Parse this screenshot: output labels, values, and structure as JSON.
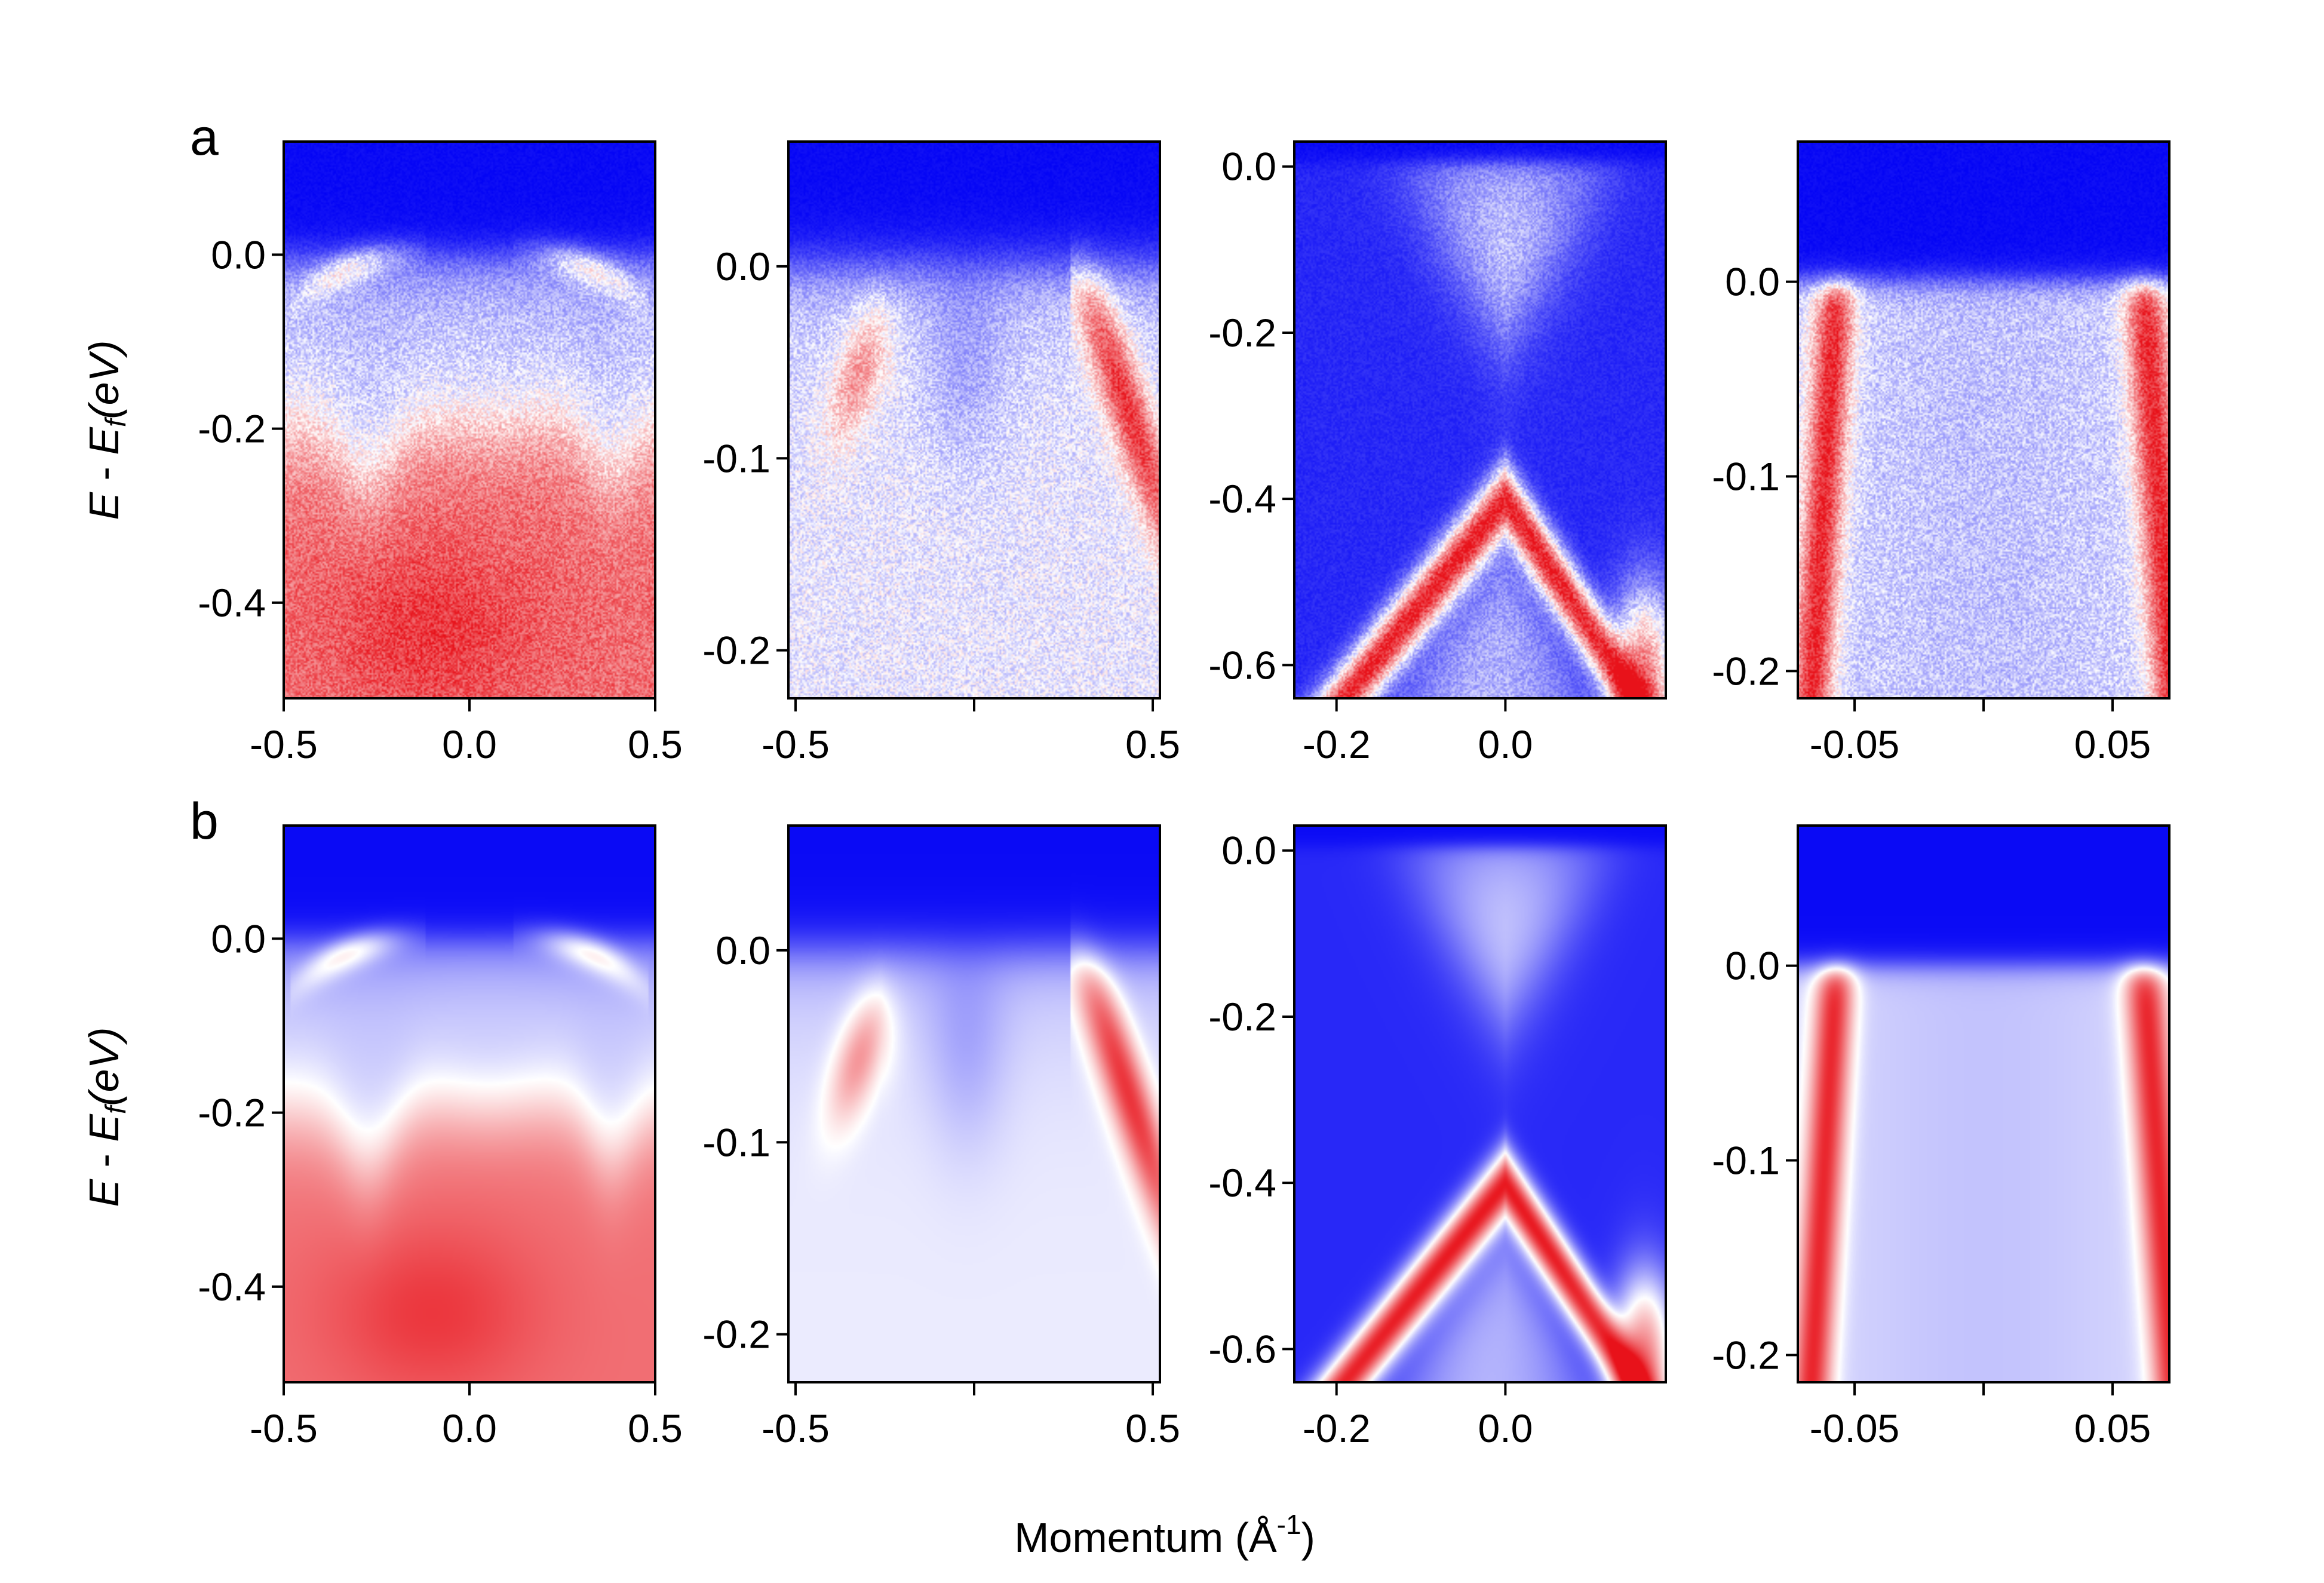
{
  "figure": {
    "xlabel": "Momentum (Å",
    "xlabel_exponent": "-1",
    "xlabel_close": ")",
    "ylabel_E": "E",
    "ylabel_minus": " - ",
    "ylabel_Ef": "E",
    "ylabel_sub": "f",
    "ylabel_unit": "(eV)"
  },
  "colors": {
    "high": "#e8121a",
    "mid": "#ffffff",
    "low": "#0000f5",
    "frame": "#000000"
  },
  "chart_data": [
    {
      "type": "heatmap",
      "row": "a",
      "title": "a",
      "panel": "wide-scan",
      "xlim": [
        -0.5,
        0.5
      ],
      "ylim": [
        -0.51,
        0.13
      ],
      "xticks": [
        -0.5,
        0.0,
        0.5
      ],
      "xtick_labels": [
        "-0.5",
        "0.0",
        "0.5"
      ],
      "yticks": [
        0.0,
        -0.2,
        -0.4
      ],
      "ytick_labels": [
        "0.0",
        "-0.2",
        "-0.4"
      ],
      "noisy": true,
      "source": "measured"
    },
    {
      "type": "heatmap",
      "row": "a",
      "title": "",
      "panel": "two-bands",
      "xlim": [
        -0.52,
        0.52
      ],
      "ylim": [
        -0.225,
        0.065
      ],
      "xticks": [
        -0.5,
        0.0,
        0.5
      ],
      "xtick_labels": [
        "-0.5",
        "",
        "0.5"
      ],
      "yticks": [
        0.0,
        -0.1,
        -0.2
      ],
      "ytick_labels": [
        "0.0",
        "-0.1",
        "-0.2"
      ],
      "noisy": true,
      "source": "measured"
    },
    {
      "type": "heatmap",
      "row": "a",
      "title": "",
      "panel": "dirac-cone",
      "xlim": [
        -0.25,
        0.19
      ],
      "ylim": [
        -0.64,
        0.03
      ],
      "xticks": [
        -0.2,
        0.0
      ],
      "xtick_labels": [
        "-0.2",
        "0.0"
      ],
      "yticks": [
        0.0,
        -0.2,
        -0.4,
        -0.6
      ],
      "ytick_labels": [
        "0.0",
        "-0.2",
        "-0.4",
        "-0.6"
      ],
      "noisy": true,
      "source": "measured"
    },
    {
      "type": "heatmap",
      "row": "a",
      "title": "",
      "panel": "zoom-bands",
      "xlim": [
        -0.072,
        0.072
      ],
      "ylim": [
        -0.214,
        0.072
      ],
      "xticks": [
        -0.05,
        0.0,
        0.05
      ],
      "xtick_labels": [
        "-0.05",
        "",
        "0.05"
      ],
      "yticks": [
        0.0,
        -0.1,
        -0.2
      ],
      "ytick_labels": [
        "0.0",
        "-0.1",
        "-0.2"
      ],
      "noisy": true,
      "source": "measured"
    },
    {
      "type": "heatmap",
      "row": "b",
      "title": "b",
      "panel": "wide-scan",
      "xlim": [
        -0.5,
        0.5
      ],
      "ylim": [
        -0.51,
        0.13
      ],
      "xticks": [
        -0.5,
        0.0,
        0.5
      ],
      "xtick_labels": [
        "-0.5",
        "0.0",
        "0.5"
      ],
      "yticks": [
        0.0,
        -0.2,
        -0.4
      ],
      "ytick_labels": [
        "0.0",
        "-0.2",
        "-0.4"
      ],
      "noisy": false,
      "source": "reconstructed"
    },
    {
      "type": "heatmap",
      "row": "b",
      "title": "",
      "panel": "two-bands",
      "xlim": [
        -0.52,
        0.52
      ],
      "ylim": [
        -0.225,
        0.065
      ],
      "xticks": [
        -0.5,
        0.0,
        0.5
      ],
      "xtick_labels": [
        "-0.5",
        "",
        "0.5"
      ],
      "yticks": [
        0.0,
        -0.1,
        -0.2
      ],
      "ytick_labels": [
        "0.0",
        "-0.1",
        "-0.2"
      ],
      "noisy": false,
      "source": "reconstructed"
    },
    {
      "type": "heatmap",
      "row": "b",
      "title": "",
      "panel": "dirac-cone",
      "xlim": [
        -0.25,
        0.19
      ],
      "ylim": [
        -0.64,
        0.03
      ],
      "xticks": [
        -0.2,
        0.0
      ],
      "xtick_labels": [
        "-0.2",
        "0.0"
      ],
      "yticks": [
        0.0,
        -0.2,
        -0.4,
        -0.6
      ],
      "ytick_labels": [
        "0.0",
        "-0.2",
        "-0.4",
        "-0.6"
      ],
      "noisy": false,
      "source": "reconstructed"
    },
    {
      "type": "heatmap",
      "row": "b",
      "title": "",
      "panel": "zoom-bands",
      "xlim": [
        -0.072,
        0.072
      ],
      "ylim": [
        -0.214,
        0.072
      ],
      "xticks": [
        -0.05,
        0.0,
        0.05
      ],
      "xtick_labels": [
        "-0.05",
        "",
        "0.05"
      ],
      "yticks": [
        0.0,
        -0.1,
        -0.2
      ],
      "ytick_labels": [
        "0.0",
        "-0.1",
        "-0.2"
      ],
      "noisy": false,
      "source": "reconstructed"
    }
  ]
}
